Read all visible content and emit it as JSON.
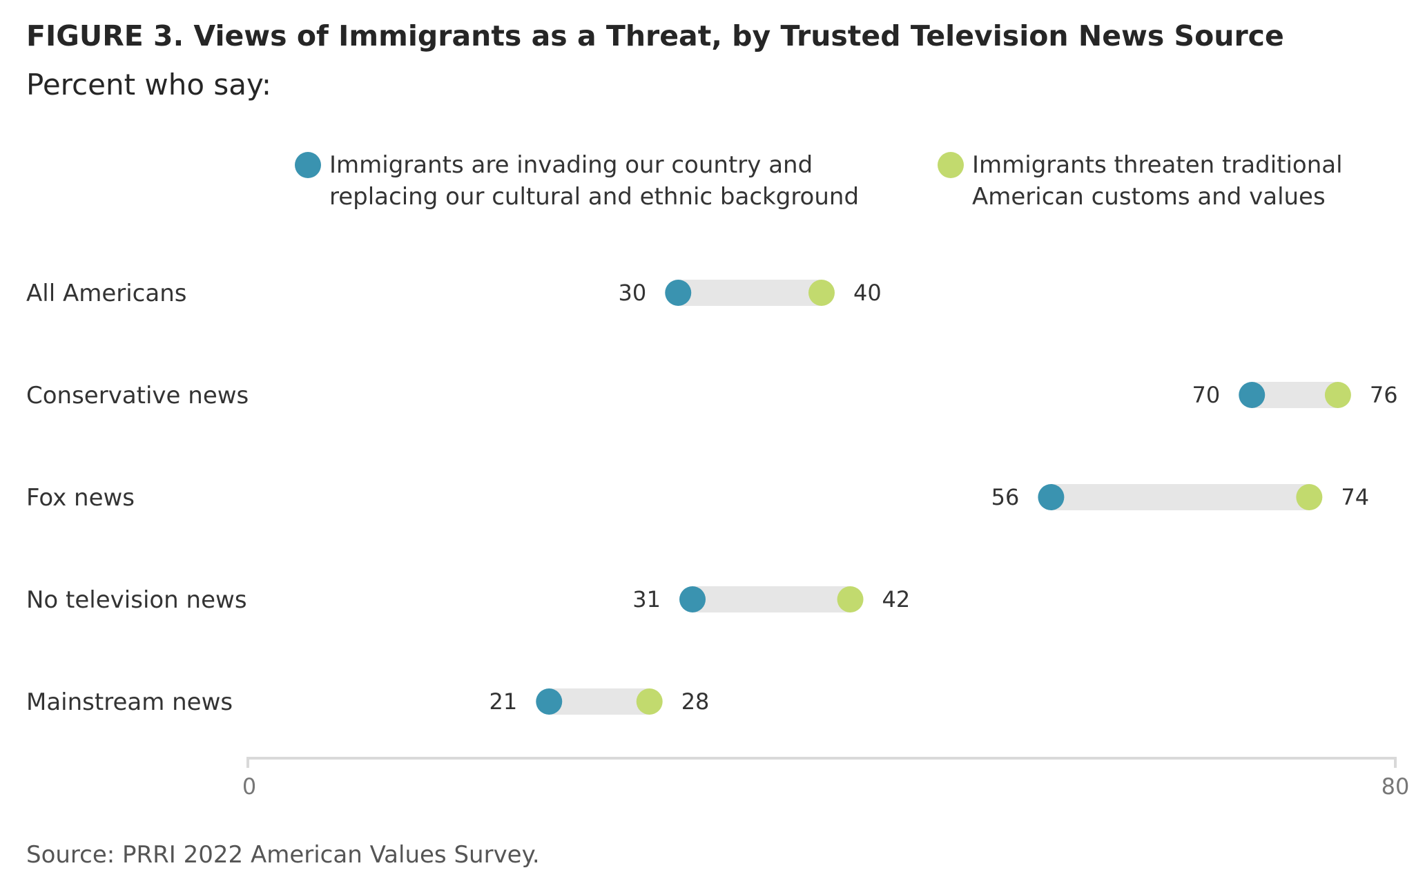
{
  "header": {
    "title": "FIGURE 3.  Views of Immigrants as a Threat, by Trusted Television News Source",
    "subtitle": "Percent who say:"
  },
  "legend": [
    {
      "label": "Immigrants are invading our country and\nreplacing our cultural and ethnic background",
      "color": "#3a93b0"
    },
    {
      "label": "Immigrants threaten traditional\nAmerican customs  and values",
      "color": "#c2da6e"
    }
  ],
  "footer": {
    "source": "Source: PRRI 2022 American Values Survey."
  },
  "chart_data": {
    "type": "dot-range",
    "categories": [
      "All Americans",
      "Conservative news",
      "Fox news",
      "No television news",
      "Mainstream news"
    ],
    "series": [
      {
        "name": "Immigrants are invading our country and replacing our cultural and ethnic background",
        "values": [
          30,
          70,
          56,
          31,
          21
        ],
        "color": "#3a93b0"
      },
      {
        "name": "Immigrants threaten traditional American customs  and values",
        "values": [
          40,
          76,
          74,
          42,
          28
        ],
        "color": "#c2da6e"
      }
    ],
    "xlim": [
      0,
      80
    ],
    "ticks": [
      "0",
      "80"
    ],
    "range_bar_color": "#e6e6e6",
    "axis_color": "#d9d9d9"
  }
}
